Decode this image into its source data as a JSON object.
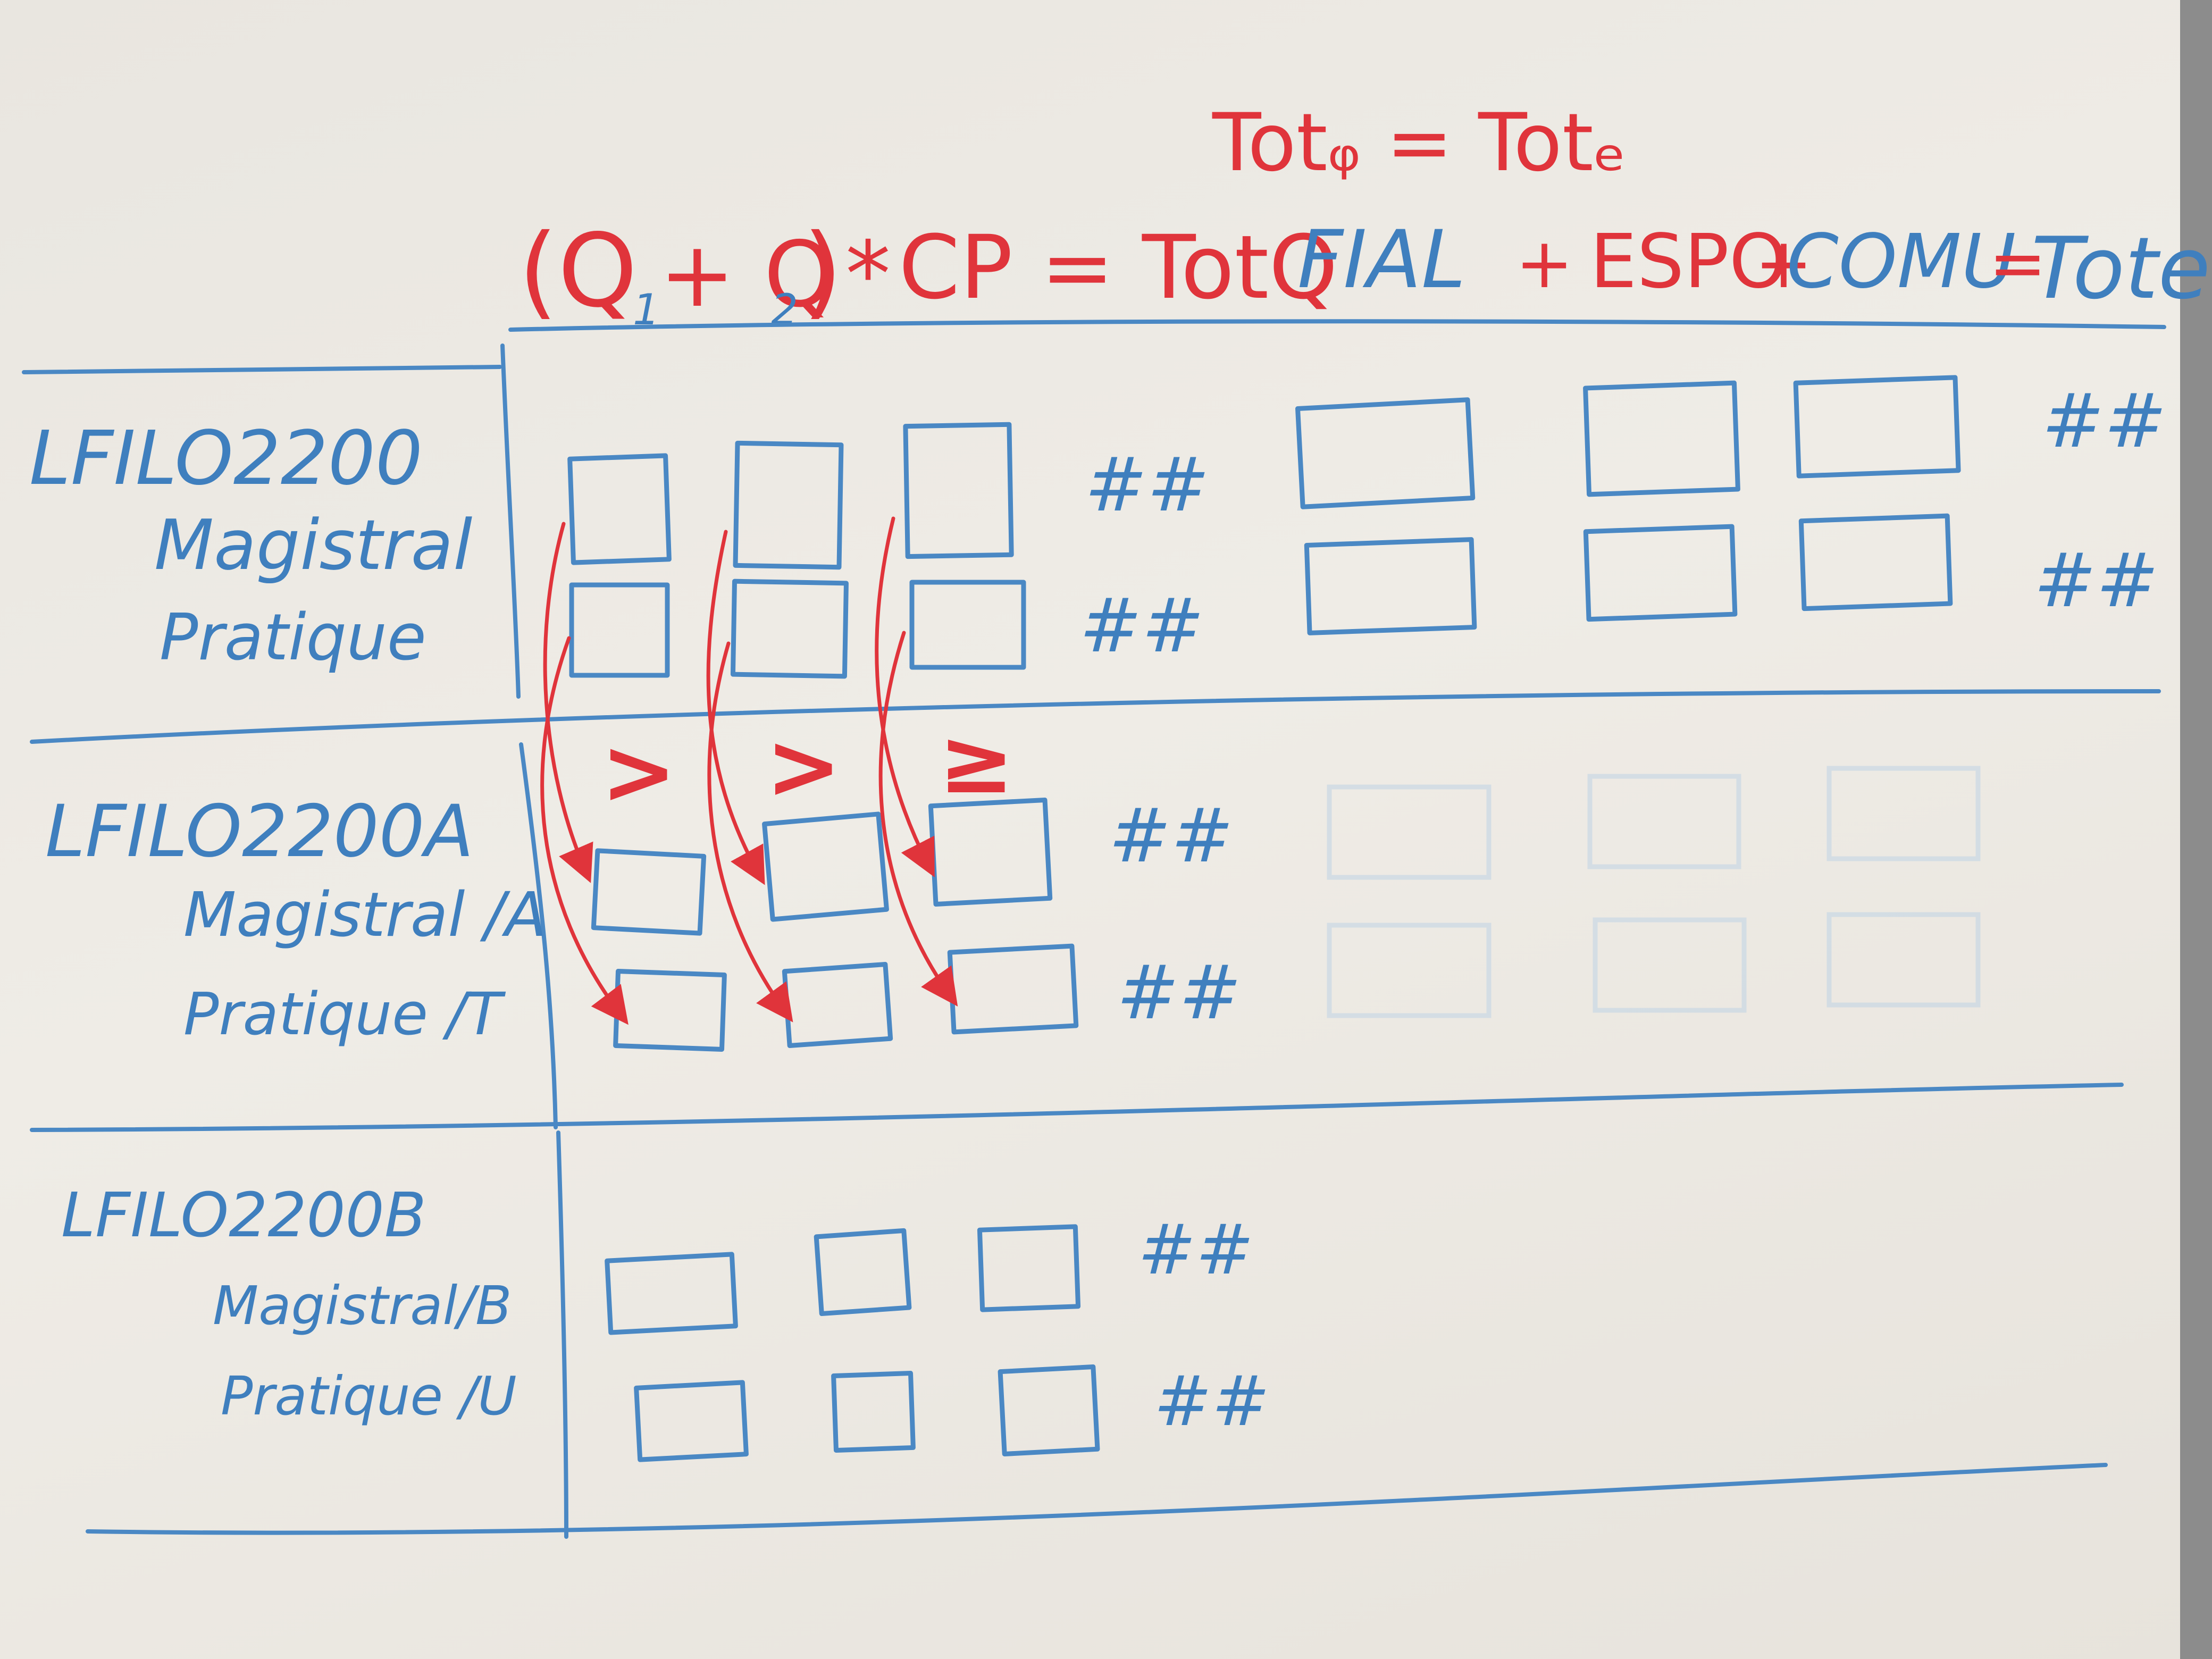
{
  "equations": {
    "top": "Totᵩ = Totₑ",
    "left_part1": "(Q",
    "left_sub1": "1",
    "left_part2": "+ Q",
    "left_sub2": "2",
    "left_part3": ")",
    "left_star": "*",
    "left_part4": "CP = TotQ",
    "right_fial": "FIAL",
    "right_plus1": "+",
    "right_espo": "ESPO",
    "right_plus2": "+",
    "right_comu": "COMU",
    "right_eq": "=",
    "right_tote": "ToteE"
  },
  "sections": [
    {
      "code": "LFILO2200",
      "line1": "Magistral",
      "line2": "Pratique"
    },
    {
      "code": "LFILO2200A",
      "line1": "Magistral /A",
      "line2": "Pratique /T"
    },
    {
      "code": "LFILO2200B",
      "line1": "Magistral/B",
      "line2": "Pratique /U"
    }
  ],
  "markers": {
    "hash": "##",
    "gt1": ">",
    "gt2": ">",
    "gte": "≥"
  },
  "colors": {
    "blue_marker": "#3f7fbe",
    "red_marker": "#e0343b",
    "board": "#ece9e3"
  }
}
